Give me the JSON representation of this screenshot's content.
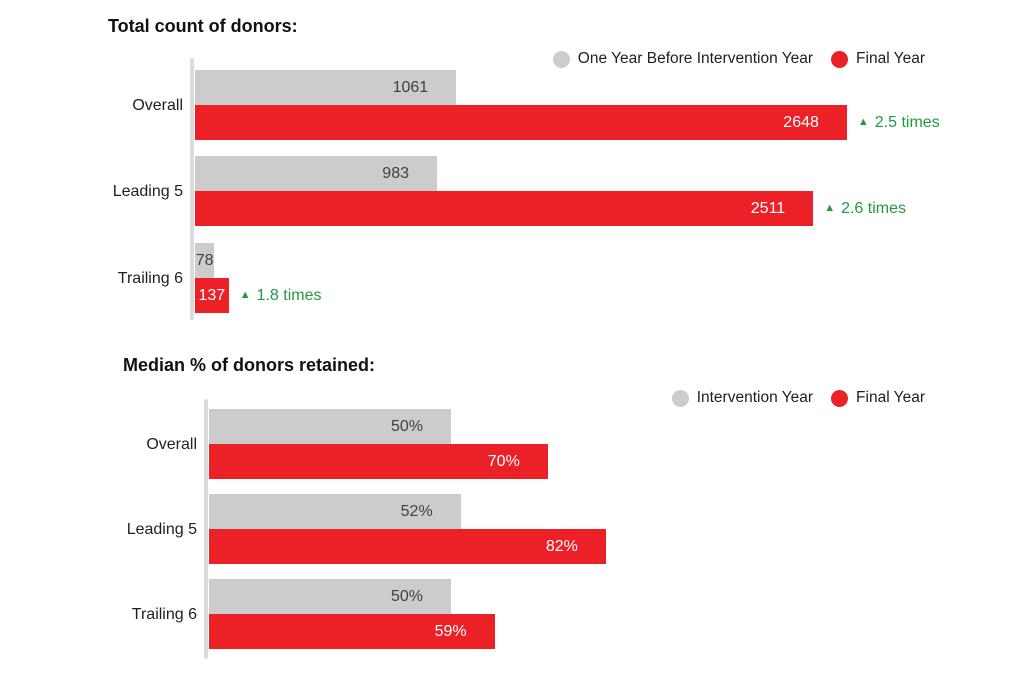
{
  "colors": {
    "bar_gray": "#cccccc",
    "bar_red": "#ec2127",
    "annotation_green": "#229b3e",
    "axis_line": "#dbdbdb",
    "text_dark": "#1a1a1a"
  },
  "chart_data": [
    {
      "type": "bar",
      "orientation": "horizontal",
      "title": "Total count of donors:",
      "categories": [
        "Overall",
        "Leading 5",
        "Trailing 6"
      ],
      "series": [
        {
          "name": "One Year Before Intervention Year",
          "color": "#cccccc",
          "values": [
            1061,
            983,
            78
          ],
          "labels": [
            "1061",
            "983",
            "78"
          ]
        },
        {
          "name": "Final Year",
          "color": "#ec2127",
          "values": [
            2648,
            2511,
            137
          ],
          "labels": [
            "2648",
            "2511",
            "137"
          ]
        }
      ],
      "annotation_symbol": "▲",
      "annotations": [
        "2.5 times",
        "2.6 times",
        "1.8 times"
      ],
      "xlabel": "",
      "ylabel": "",
      "xlim": [
        0,
        2700
      ],
      "grid": false,
      "legend_position": "top-right",
      "value_labels_inside_bars": true
    },
    {
      "type": "bar",
      "orientation": "horizontal",
      "title": "Median % of donors retained:",
      "categories": [
        "Overall",
        "Leading 5",
        "Trailing 6"
      ],
      "series": [
        {
          "name": "Intervention Year",
          "color": "#cccccc",
          "values": [
            50,
            52,
            50
          ],
          "labels": [
            "50%",
            "52%",
            "50%"
          ]
        },
        {
          "name": "Final Year",
          "color": "#ec2127",
          "values": [
            70,
            82,
            59
          ],
          "labels": [
            "70%",
            "82%",
            "59%"
          ]
        }
      ],
      "xlabel": "",
      "ylabel": "",
      "xlim": [
        0,
        100
      ],
      "grid": false,
      "legend_position": "top-right",
      "value_labels_inside_bars": true
    }
  ]
}
